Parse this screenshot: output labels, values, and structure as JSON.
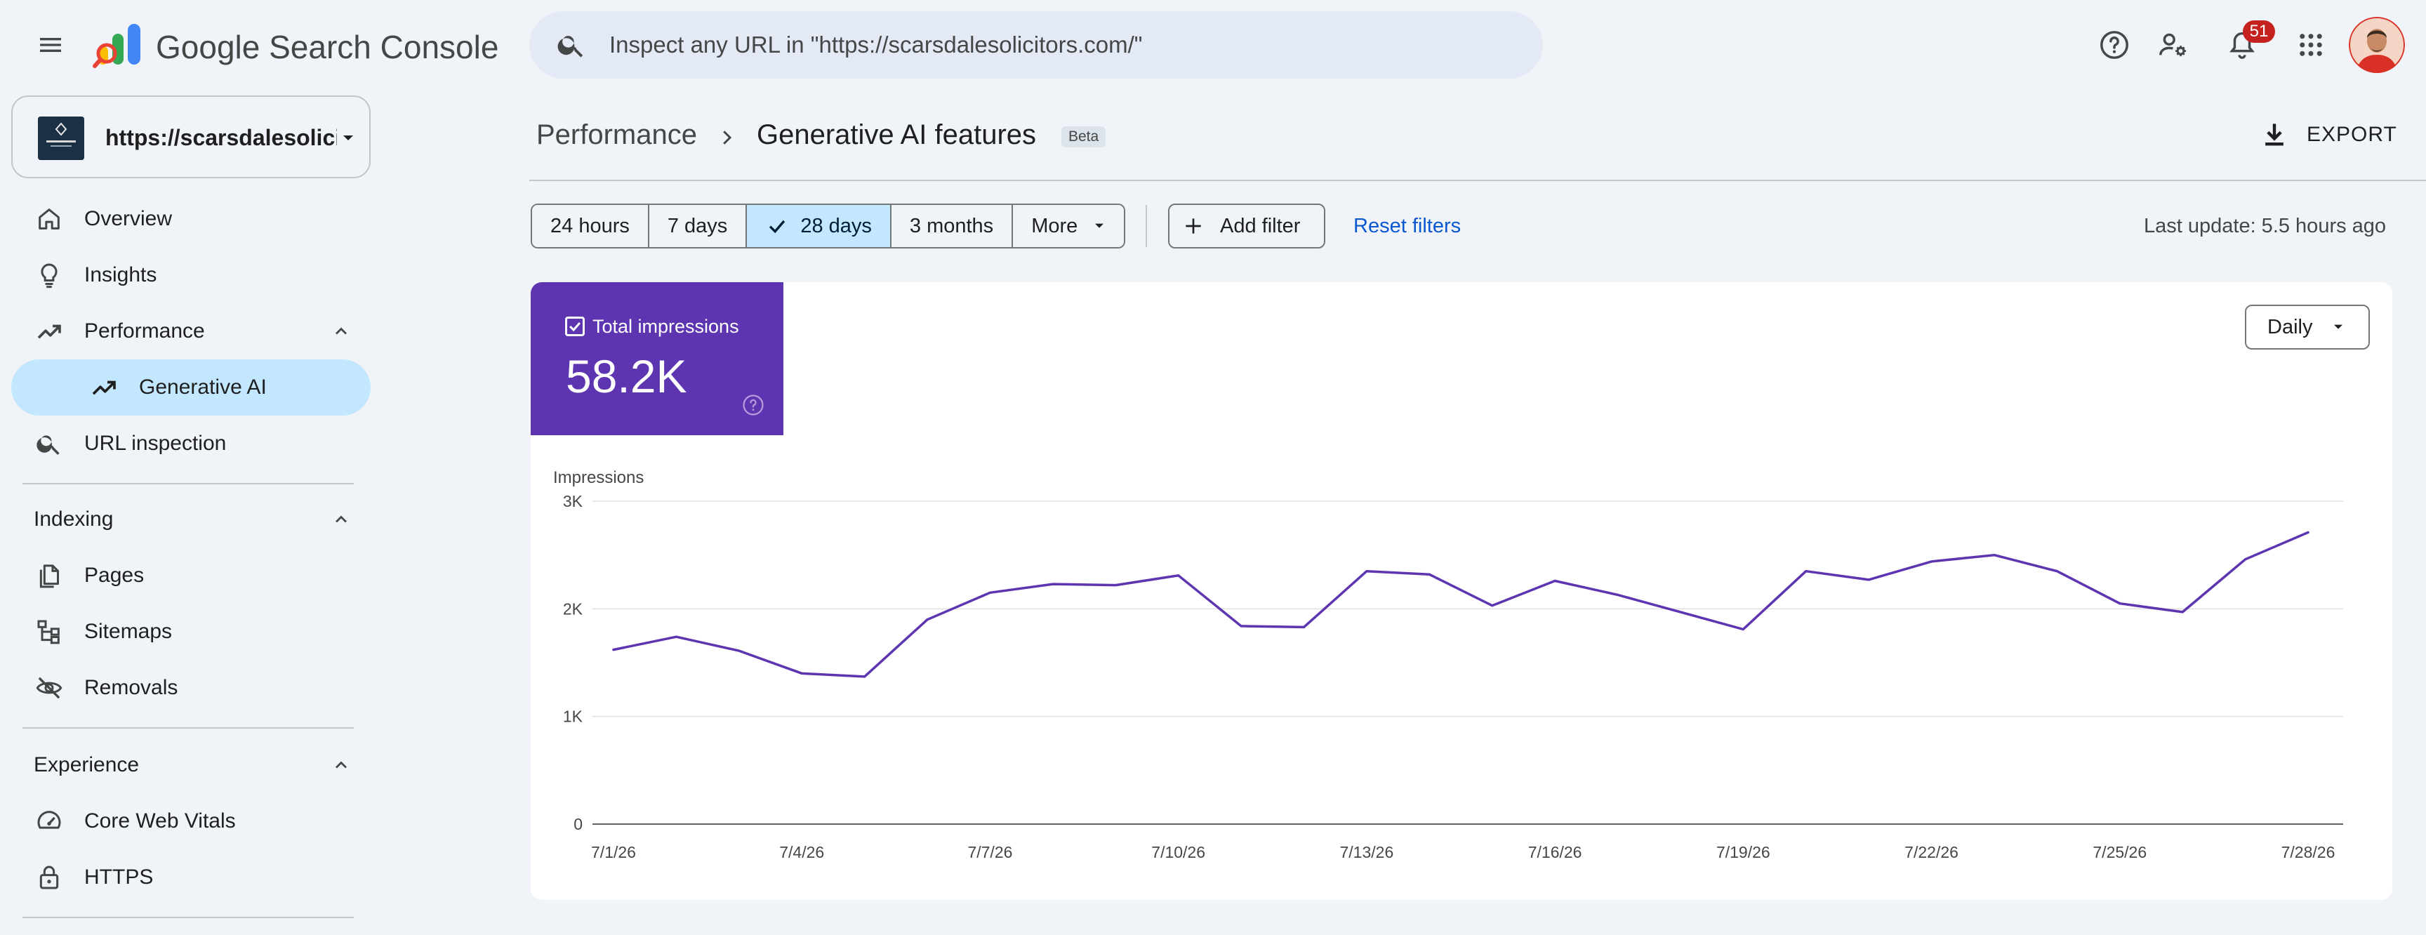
{
  "app": {
    "name": "Google Search Console",
    "search_placeholder": "Inspect any URL in \"https://scarsdalesolicitors.com/\"",
    "notification_count": "51",
    "accent": "#5e35b1",
    "selected_bg": "#c2e7ff",
    "link_color": "#0b57d0"
  },
  "icons": {
    "menu": "menu-icon",
    "search": "search-icon",
    "help": "help-icon",
    "manage_users": "manage-accounts-icon",
    "notifications": "bell-icon",
    "apps": "apps-grid-icon"
  },
  "property": {
    "url": "https://scarsdalesolicitors.com/",
    "url_display": "https://scarsdalesolici..."
  },
  "sidebar": {
    "items": [
      {
        "label": "Overview",
        "icon": "home-icon"
      },
      {
        "label": "Insights",
        "icon": "lightbulb-icon"
      },
      {
        "label": "Performance",
        "icon": "trending-up-icon"
      },
      {
        "label": "Generative AI",
        "icon": "trending-up-icon",
        "active": true
      },
      {
        "label": "URL inspection",
        "icon": "search-icon"
      }
    ],
    "sections": [
      {
        "label": "Indexing",
        "items": [
          {
            "label": "Pages",
            "icon": "pages-icon"
          },
          {
            "label": "Sitemaps",
            "icon": "sitemap-icon"
          },
          {
            "label": "Removals",
            "icon": "visibility-off-icon"
          }
        ]
      },
      {
        "label": "Experience",
        "items": [
          {
            "label": "Core Web Vitals",
            "icon": "speed-icon"
          },
          {
            "label": "HTTPS",
            "icon": "lock-icon"
          }
        ]
      }
    ]
  },
  "header": {
    "breadcrumb_root": "Performance",
    "title": "Generative AI features",
    "badge": "Beta",
    "export_label": "EXPORT"
  },
  "filters": {
    "date_ranges": [
      {
        "label": "24 hours",
        "selected": false
      },
      {
        "label": "7 days",
        "selected": false
      },
      {
        "label": "28 days",
        "selected": true
      },
      {
        "label": "3 months",
        "selected": false
      },
      {
        "label": "More",
        "selected": false,
        "dropdown": true
      }
    ],
    "add_filter_label": "Add filter",
    "reset_label": "Reset filters",
    "last_update": "Last update: 5.5 hours ago"
  },
  "metric": {
    "label": "Total impressions",
    "value": "58.2K",
    "checked": true
  },
  "granularity": "Daily",
  "chart_data": {
    "type": "line",
    "ylabel": "Impressions",
    "ylim": [
      0,
      3000
    ],
    "yticks": [
      0,
      1000,
      2000,
      3000
    ],
    "ytick_labels": [
      "0",
      "1K",
      "2K",
      "3K"
    ],
    "x": [
      "7/1/26",
      "7/2/26",
      "7/3/26",
      "7/4/26",
      "7/5/26",
      "7/6/26",
      "7/7/26",
      "7/8/26",
      "7/9/26",
      "7/10/26",
      "7/11/26",
      "7/12/26",
      "7/13/26",
      "7/14/26",
      "7/15/26",
      "7/16/26",
      "7/17/26",
      "7/18/26",
      "7/19/26",
      "7/20/26",
      "7/21/26",
      "7/22/26",
      "7/23/26",
      "7/24/26",
      "7/25/26",
      "7/26/26",
      "7/27/26",
      "7/28/26"
    ],
    "xtick_labels": [
      "7/1/26",
      "7/4/26",
      "7/7/26",
      "7/10/26",
      "7/13/26",
      "7/16/26",
      "7/19/26",
      "7/22/26",
      "7/25/26",
      "7/28/26"
    ],
    "series": [
      {
        "color": "#5e35b1",
        "values": [
          1620,
          1740,
          1610,
          1400,
          1370,
          1900,
          2150,
          2230,
          2220,
          2310,
          1840,
          1830,
          2350,
          2320,
          2030,
          2260,
          2130,
          1970,
          1810,
          2350,
          2270,
          2440,
          2500,
          2350,
          2050,
          1970,
          2460,
          2710
        ]
      }
    ],
    "grid": true,
    "legend": "none"
  }
}
